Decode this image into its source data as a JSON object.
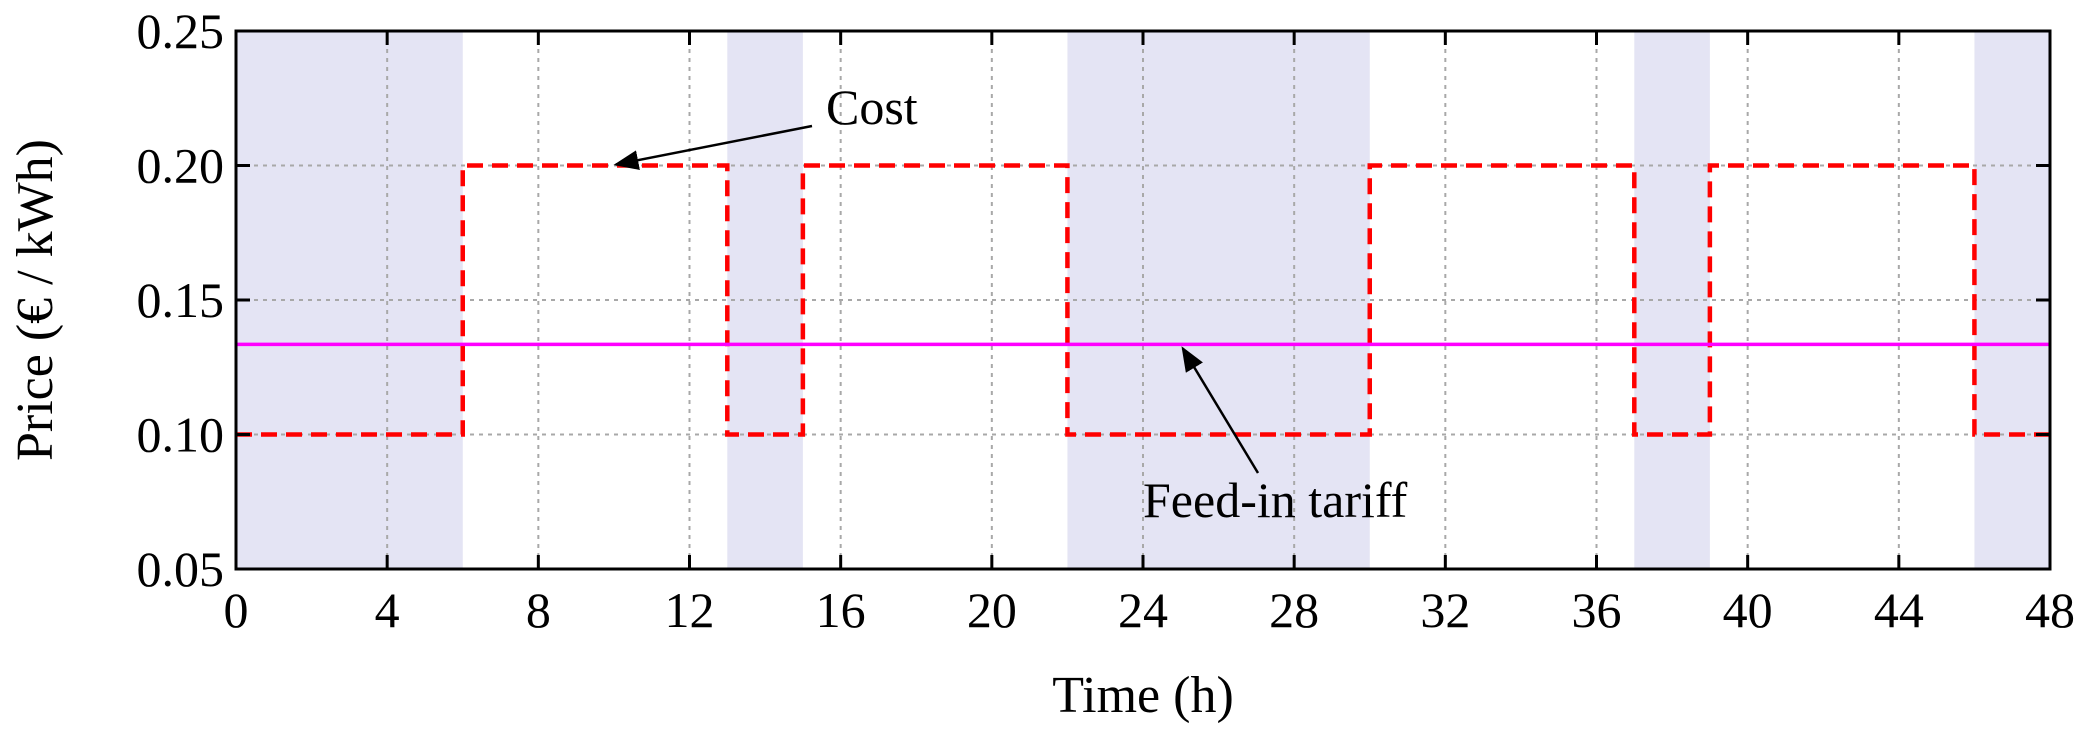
{
  "chart_data": {
    "type": "line",
    "title": "",
    "xlabel": "Time (h)",
    "ylabel": "Price (€ / kWh)",
    "xlim": [
      0,
      48
    ],
    "ylim": [
      0.05,
      0.25
    ],
    "x_ticks": [
      "0",
      "4",
      "8",
      "12",
      "16",
      "20",
      "24",
      "28",
      "32",
      "36",
      "40",
      "44",
      "48"
    ],
    "y_ticks": [
      "0.05",
      "0.10",
      "0.15",
      "0.20",
      "0.25"
    ],
    "grid": true,
    "shaded_intervals": [
      [
        0,
        6
      ],
      [
        13,
        15
      ],
      [
        22,
        30
      ],
      [
        37,
        39
      ],
      [
        46,
        48
      ]
    ],
    "series": [
      {
        "name": "Cost",
        "style": "dashed",
        "color": "#ff0000",
        "x": [
          0,
          6,
          6,
          13,
          13,
          15,
          15,
          22,
          22,
          30,
          30,
          37,
          37,
          39,
          39,
          46,
          46,
          48
        ],
        "values": [
          0.1,
          0.1,
          0.2,
          0.2,
          0.1,
          0.1,
          0.2,
          0.2,
          0.1,
          0.1,
          0.2,
          0.2,
          0.1,
          0.1,
          0.2,
          0.2,
          0.1,
          0.1
        ]
      },
      {
        "name": "Feed-in tariff",
        "style": "solid",
        "color": "#ff00ff",
        "x": [
          0,
          48
        ],
        "values": [
          0.1335,
          0.1335
        ]
      }
    ],
    "annotations": [
      {
        "text": "Cost",
        "target_x": 10,
        "target_y": 0.2
      },
      {
        "text": "Feed-in tariff",
        "target_x": 25,
        "target_y": 0.1335
      }
    ]
  },
  "colors": {
    "shade": "#e4e4f4",
    "grid": "#a8a8a8",
    "axis": "#000000"
  }
}
